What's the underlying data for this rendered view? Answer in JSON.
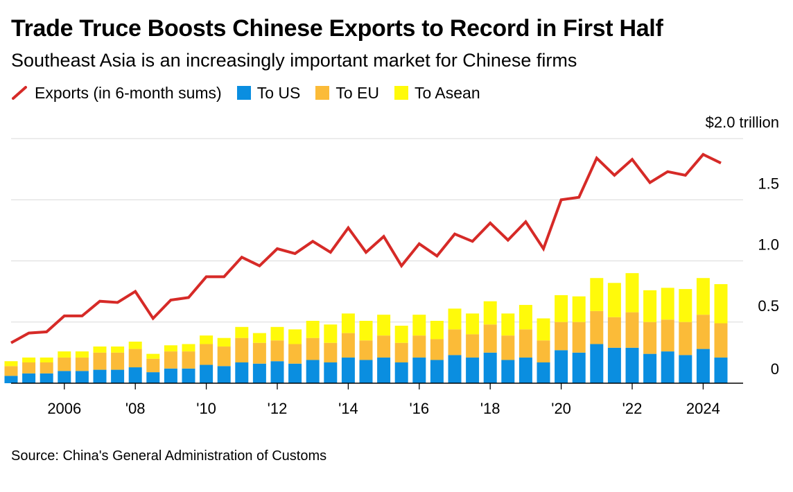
{
  "title": "Trade Truce Boosts Chinese Exports to Record in First Half",
  "subtitle": "Southeast Asia is an increasingly important market for Chinese firms",
  "legend": {
    "exports": "Exports (in 6-month sums)",
    "us": "To US",
    "eu": "To EU",
    "asean": "To Asean"
  },
  "source": "Source: China's General Administration of Customs",
  "colors": {
    "exports": "#d62a27",
    "us": "#0a8ee0",
    "eu": "#fbbb38",
    "asean": "#fffa0a",
    "grid": "#d9d9d9"
  },
  "chart_data": {
    "type": "bar",
    "periods": [
      "2005 H1",
      "2005 H2",
      "2006 H1",
      "2006 H2",
      "2007 H1",
      "2007 H2",
      "2008 H1",
      "2008 H2",
      "2009 H1",
      "2009 H2",
      "2010 H1",
      "2010 H2",
      "2011 H1",
      "2011 H2",
      "2012 H1",
      "2012 H2",
      "2013 H1",
      "2013 H2",
      "2014 H1",
      "2014 H2",
      "2015 H1",
      "2015 H2",
      "2016 H1",
      "2016 H2",
      "2017 H1",
      "2017 H2",
      "2018 H1",
      "2018 H2",
      "2019 H1",
      "2019 H2",
      "2020 H1",
      "2020 H2",
      "2021 H1",
      "2021 H2",
      "2022 H1",
      "2022 H2",
      "2023 H1",
      "2023 H2",
      "2024 H1",
      "2024 H2",
      "2025 H1"
    ],
    "series": [
      {
        "name": "Exports (in 6-month sums)",
        "values": [
          0.33,
          0.41,
          0.42,
          0.55,
          0.55,
          0.67,
          0.66,
          0.75,
          0.53,
          0.68,
          0.7,
          0.87,
          0.87,
          1.03,
          0.96,
          1.1,
          1.06,
          1.16,
          1.07,
          1.27,
          1.07,
          1.2,
          0.96,
          1.14,
          1.04,
          1.22,
          1.16,
          1.31,
          1.17,
          1.32,
          1.1,
          1.5,
          1.52,
          1.84,
          1.7,
          1.83,
          1.64,
          1.73,
          1.7,
          1.87,
          1.8
        ]
      },
      {
        "name": "To US",
        "values": [
          0.06,
          0.08,
          0.08,
          0.1,
          0.1,
          0.11,
          0.11,
          0.13,
          0.09,
          0.12,
          0.12,
          0.15,
          0.14,
          0.17,
          0.16,
          0.18,
          0.16,
          0.19,
          0.17,
          0.21,
          0.19,
          0.21,
          0.17,
          0.21,
          0.19,
          0.23,
          0.21,
          0.25,
          0.19,
          0.21,
          0.17,
          0.27,
          0.25,
          0.32,
          0.29,
          0.29,
          0.24,
          0.26,
          0.23,
          0.28,
          0.21
        ]
      },
      {
        "name": "To EU",
        "values": [
          0.08,
          0.09,
          0.09,
          0.11,
          0.11,
          0.14,
          0.14,
          0.15,
          0.11,
          0.14,
          0.14,
          0.17,
          0.16,
          0.2,
          0.17,
          0.17,
          0.16,
          0.18,
          0.16,
          0.2,
          0.16,
          0.18,
          0.16,
          0.18,
          0.17,
          0.21,
          0.19,
          0.23,
          0.2,
          0.23,
          0.18,
          0.23,
          0.25,
          0.27,
          0.25,
          0.29,
          0.26,
          0.26,
          0.27,
          0.28,
          0.28
        ]
      },
      {
        "name": "To Asean",
        "values": [
          0.04,
          0.04,
          0.04,
          0.05,
          0.05,
          0.05,
          0.05,
          0.06,
          0.04,
          0.05,
          0.06,
          0.07,
          0.07,
          0.09,
          0.08,
          0.11,
          0.12,
          0.14,
          0.15,
          0.16,
          0.16,
          0.17,
          0.14,
          0.17,
          0.15,
          0.17,
          0.17,
          0.19,
          0.18,
          0.2,
          0.18,
          0.22,
          0.21,
          0.27,
          0.28,
          0.32,
          0.26,
          0.26,
          0.27,
          0.3,
          0.32
        ]
      }
    ],
    "x_ticks": [
      "2006",
      "'08",
      "'10",
      "'12",
      "'14",
      "'16",
      "'18",
      "'20",
      "'22",
      "2024"
    ],
    "x_tick_periods": [
      "2006 H2",
      "2008 H2",
      "2010 H2",
      "2012 H2",
      "2014 H2",
      "2016 H2",
      "2018 H2",
      "2020 H2",
      "2022 H2",
      "2024 H2"
    ],
    "y_ticks": [
      0,
      0.5,
      1.0,
      1.5,
      2.0
    ],
    "y_tick_labels": [
      "0",
      "0.5",
      "1.0",
      "1.5",
      "$2.0 trillion"
    ],
    "ylim": [
      0,
      2.0
    ],
    "grid": true,
    "y_axis_side": "right",
    "legend_position": "top-left",
    "unit": "trillion"
  }
}
